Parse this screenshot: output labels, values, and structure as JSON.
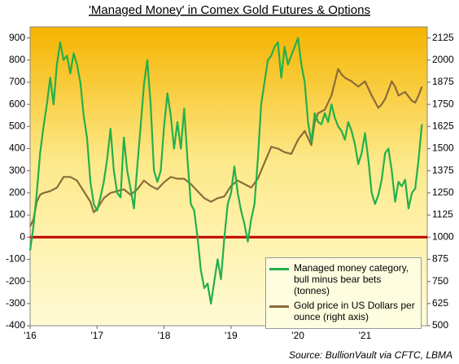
{
  "chart_data": {
    "type": "line",
    "title": "'Managed Money' in Comex Gold Futures & Options",
    "source": "Source: BullionVault via CFTC, LBMA",
    "xlim": [
      2016,
      2021.93
    ],
    "xticks": [
      {
        "value": 2016,
        "label": "'16"
      },
      {
        "value": 2017,
        "label": "'17"
      },
      {
        "value": 2018,
        "label": "'18"
      },
      {
        "value": 2019,
        "label": "'19"
      },
      {
        "value": 2020,
        "label": "'20"
      },
      {
        "value": 2021,
        "label": "'21"
      }
    ],
    "ylim": [
      -400,
      950
    ],
    "yticks": [
      900,
      800,
      700,
      600,
      500,
      400,
      300,
      200,
      100,
      0,
      -100,
      -200,
      -300,
      -400
    ],
    "y2lim": [
      500,
      2187.5
    ],
    "y2ticks": [
      2125,
      2000,
      1875,
      1750,
      1625,
      1500,
      1375,
      1250,
      1125,
      1000,
      875,
      750,
      625,
      500
    ],
    "zero_line": true,
    "zero_line_color": "#c00000",
    "legend": "lower right",
    "series": [
      {
        "name": "Managed money category, bull minus bear bets (tonnes)",
        "color": "#22b04b",
        "x": [
          2016.0,
          2016.05,
          2016.1,
          2016.15,
          2016.2,
          2016.25,
          2016.3,
          2016.35,
          2016.4,
          2016.45,
          2016.5,
          2016.55,
          2016.6,
          2016.65,
          2016.7,
          2016.75,
          2016.8,
          2016.85,
          2016.9,
          2016.95,
          2017.0,
          2017.05,
          2017.1,
          2017.15,
          2017.2,
          2017.25,
          2017.3,
          2017.35,
          2017.4,
          2017.45,
          2017.5,
          2017.55,
          2017.6,
          2017.65,
          2017.7,
          2017.75,
          2017.8,
          2017.85,
          2017.9,
          2017.95,
          2018.0,
          2018.05,
          2018.1,
          2018.15,
          2018.2,
          2018.25,
          2018.3,
          2018.35,
          2018.4,
          2018.45,
          2018.5,
          2018.55,
          2018.6,
          2018.65,
          2018.7,
          2018.75,
          2018.8,
          2018.85,
          2018.9,
          2018.95,
          2019.0,
          2019.05,
          2019.1,
          2019.15,
          2019.2,
          2019.25,
          2019.3,
          2019.35,
          2019.4,
          2019.45,
          2019.5,
          2019.55,
          2019.6,
          2019.65,
          2019.7,
          2019.75,
          2019.8,
          2019.85,
          2019.9,
          2019.95,
          2020.0,
          2020.05,
          2020.1,
          2020.15,
          2020.2,
          2020.25,
          2020.3,
          2020.35,
          2020.4,
          2020.45,
          2020.5,
          2020.55,
          2020.6,
          2020.65,
          2020.7,
          2020.75,
          2020.8,
          2020.85,
          2020.9,
          2020.95,
          2021.0,
          2021.05,
          2021.1,
          2021.15,
          2021.2,
          2021.25,
          2021.3,
          2021.35,
          2021.4,
          2021.45,
          2021.5,
          2021.55,
          2021.6,
          2021.65,
          2021.7,
          2021.75,
          2021.8,
          2021.85
        ],
        "values": [
          -60,
          50,
          200,
          380,
          500,
          600,
          720,
          600,
          780,
          880,
          800,
          820,
          740,
          830,
          780,
          700,
          550,
          450,
          250,
          150,
          120,
          180,
          250,
          350,
          490,
          300,
          200,
          180,
          450,
          300,
          220,
          130,
          320,
          500,
          690,
          800,
          600,
          300,
          250,
          300,
          500,
          650,
          550,
          400,
          520,
          400,
          580,
          350,
          150,
          120,
          0,
          -150,
          -230,
          -210,
          -300,
          -200,
          -100,
          -190,
          0,
          150,
          200,
          320,
          200,
          120,
          60,
          -20,
          80,
          150,
          350,
          600,
          700,
          800,
          820,
          860,
          880,
          720,
          860,
          780,
          820,
          860,
          900,
          780,
          700,
          520,
          430,
          560,
          520,
          510,
          560,
          520,
          600,
          540,
          500,
          480,
          440,
          520,
          480,
          420,
          330,
          380,
          470,
          350,
          200,
          150,
          190,
          260,
          380,
          400,
          300,
          160,
          250,
          230,
          260,
          130,
          200,
          220,
          350,
          510
        ]
      },
      {
        "name": "Gold price in US Dollars per ounce (right axis)",
        "color": "#8b6c3a",
        "axis": "y2",
        "x": [
          2016.0,
          2016.05,
          2016.1,
          2016.15,
          2016.2,
          2016.3,
          2016.4,
          2016.5,
          2016.6,
          2016.7,
          2016.8,
          2016.9,
          2016.95,
          2017.0,
          2017.1,
          2017.2,
          2017.3,
          2017.4,
          2017.5,
          2017.6,
          2017.7,
          2017.8,
          2017.9,
          2018.0,
          2018.1,
          2018.2,
          2018.3,
          2018.4,
          2018.5,
          2018.6,
          2018.7,
          2018.8,
          2018.9,
          2019.0,
          2019.1,
          2019.2,
          2019.3,
          2019.4,
          2019.5,
          2019.6,
          2019.7,
          2019.8,
          2019.9,
          2020.0,
          2020.1,
          2020.2,
          2020.25,
          2020.3,
          2020.4,
          2020.5,
          2020.6,
          2020.65,
          2020.7,
          2020.8,
          2020.9,
          2021.0,
          2021.1,
          2021.2,
          2021.25,
          2021.3,
          2021.4,
          2021.45,
          2021.5,
          2021.6,
          2021.7,
          2021.75,
          2021.8,
          2021.85
        ],
        "values": [
          1060,
          1100,
          1200,
          1240,
          1250,
          1260,
          1280,
          1340,
          1340,
          1320,
          1260,
          1200,
          1140,
          1160,
          1220,
          1250,
          1260,
          1270,
          1240,
          1270,
          1320,
          1290,
          1270,
          1310,
          1340,
          1330,
          1330,
          1300,
          1260,
          1220,
          1200,
          1220,
          1230,
          1290,
          1320,
          1300,
          1280,
          1330,
          1420,
          1510,
          1500,
          1480,
          1470,
          1550,
          1600,
          1520,
          1650,
          1700,
          1720,
          1800,
          1950,
          1920,
          1900,
          1880,
          1850,
          1880,
          1800,
          1730,
          1750,
          1780,
          1880,
          1850,
          1800,
          1820,
          1770,
          1760,
          1800,
          1850
        ]
      }
    ]
  }
}
